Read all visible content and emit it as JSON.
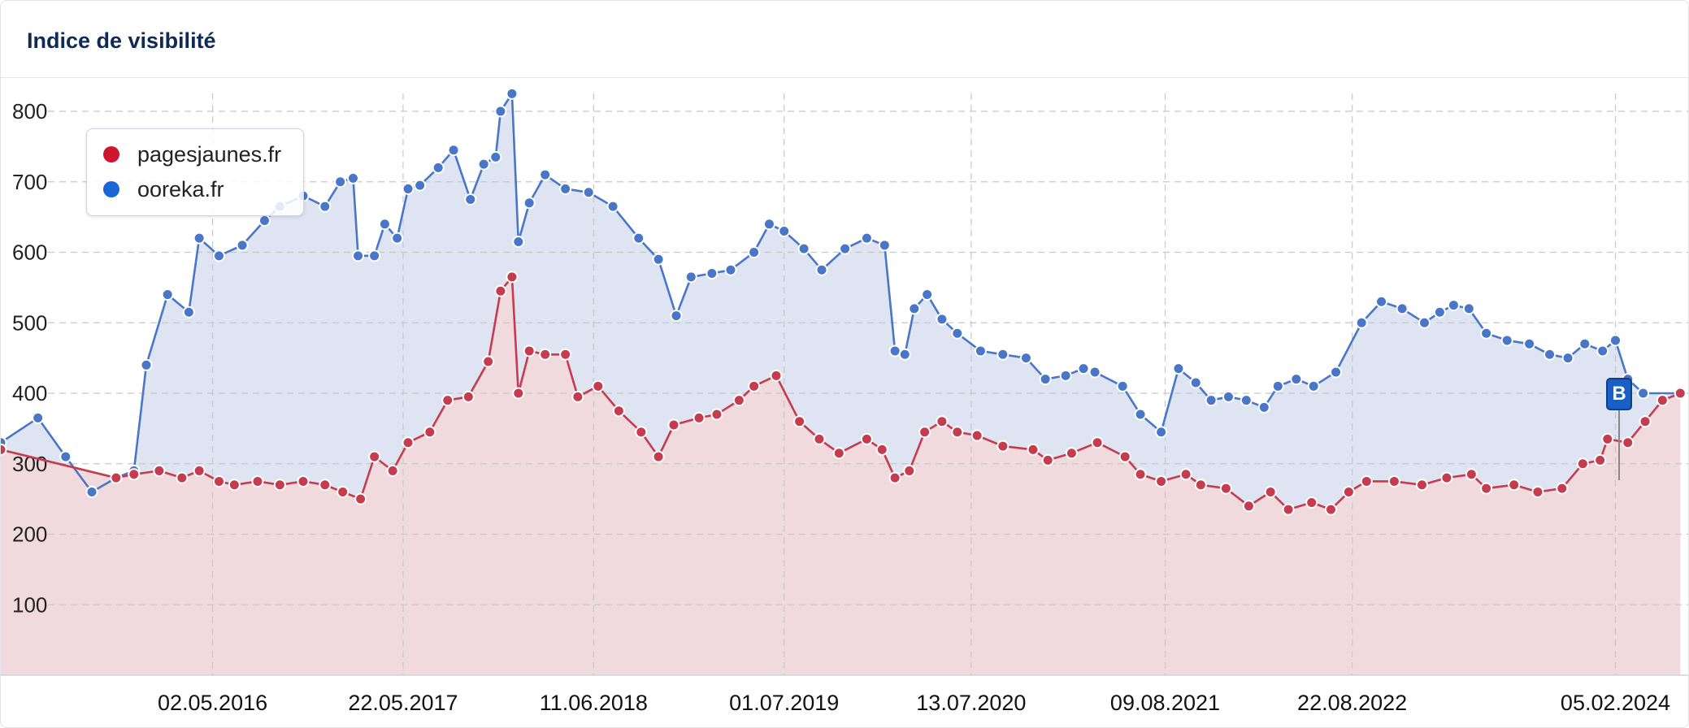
{
  "title": "Indice de visibilité",
  "colors": {
    "pagesjaunes_line": "#c43c4e",
    "pagesjaunes_fill": "#f1dadd",
    "ooreka_line": "#4a76c8",
    "ooreka_fill": "#dfe4f2",
    "grid": "#c8c8c8"
  },
  "legend": [
    {
      "label": "pagesjaunes.fr",
      "color": "#d0162e"
    },
    {
      "label": "ooreka.fr",
      "color": "#1a66d6"
    }
  ],
  "marker": {
    "label": "B",
    "date": "2024-01"
  },
  "chart_data": {
    "type": "area",
    "x_type": "date",
    "xlim": [
      "2015-03",
      "2024-07"
    ],
    "ylim": [
      0,
      850
    ],
    "yticks": [
      100,
      200,
      300,
      400,
      500,
      600,
      700,
      800
    ],
    "xtick_dates": [
      "2016-05-02",
      "2017-05-22",
      "2018-06-11",
      "2019-07-01",
      "2020-07-13",
      "2021-08-09",
      "2022-08-22",
      "2024-02-05"
    ],
    "xtick_labels": [
      "02.05.2016",
      "22.05.2017",
      "11.06.2018",
      "01.07.2019",
      "13.07.2020",
      "09.08.2021",
      "22.08.2022",
      "05.02.2024"
    ],
    "legend_position": "top-left",
    "grid": true,
    "series": [
      {
        "name": "ooreka.fr",
        "points": [
          [
            "2015-03-01",
            330
          ],
          [
            "2015-05-15",
            365
          ],
          [
            "2015-07-10",
            310
          ],
          [
            "2015-09-01",
            260
          ],
          [
            "2015-10-20",
            280
          ],
          [
            "2015-11-25",
            290
          ],
          [
            "2015-12-20",
            440
          ],
          [
            "2016-02-01",
            540
          ],
          [
            "2016-03-15",
            515
          ],
          [
            "2016-04-05",
            620
          ],
          [
            "2016-05-15",
            595
          ],
          [
            "2016-07-01",
            610
          ],
          [
            "2016-08-15",
            645
          ],
          [
            "2016-09-15",
            665
          ],
          [
            "2016-11-01",
            680
          ],
          [
            "2016-12-15",
            665
          ],
          [
            "2017-01-15",
            700
          ],
          [
            "2017-02-10",
            705
          ],
          [
            "2017-02-20",
            595
          ],
          [
            "2017-03-25",
            595
          ],
          [
            "2017-04-15",
            640
          ],
          [
            "2017-05-10",
            620
          ],
          [
            "2017-06-01",
            690
          ],
          [
            "2017-06-25",
            695
          ],
          [
            "2017-08-01",
            720
          ],
          [
            "2017-09-01",
            745
          ],
          [
            "2017-10-05",
            675
          ],
          [
            "2017-11-01",
            725
          ],
          [
            "2017-11-25",
            735
          ],
          [
            "2017-12-05",
            800
          ],
          [
            "2017-12-28",
            825
          ],
          [
            "2018-01-10",
            615
          ],
          [
            "2018-02-01",
            670
          ],
          [
            "2018-03-05",
            710
          ],
          [
            "2018-04-15",
            690
          ],
          [
            "2018-06-01",
            685
          ],
          [
            "2018-07-20",
            665
          ],
          [
            "2018-09-10",
            620
          ],
          [
            "2018-10-20",
            590
          ],
          [
            "2018-11-25",
            510
          ],
          [
            "2018-12-25",
            565
          ],
          [
            "2019-02-05",
            570
          ],
          [
            "2019-03-15",
            575
          ],
          [
            "2019-05-01",
            600
          ],
          [
            "2019-06-01",
            640
          ],
          [
            "2019-07-01",
            630
          ],
          [
            "2019-08-10",
            605
          ],
          [
            "2019-09-15",
            575
          ],
          [
            "2019-11-01",
            605
          ],
          [
            "2019-12-15",
            620
          ],
          [
            "2020-01-20",
            610
          ],
          [
            "2020-02-10",
            460
          ],
          [
            "2020-03-01",
            455
          ],
          [
            "2020-03-20",
            520
          ],
          [
            "2020-04-15",
            540
          ],
          [
            "2020-05-15",
            505
          ],
          [
            "2020-06-15",
            485
          ],
          [
            "2020-08-01",
            460
          ],
          [
            "2020-09-15",
            455
          ],
          [
            "2020-11-01",
            450
          ],
          [
            "2020-12-10",
            420
          ],
          [
            "2021-01-20",
            425
          ],
          [
            "2021-02-25",
            435
          ],
          [
            "2021-03-20",
            430
          ],
          [
            "2021-05-15",
            410
          ],
          [
            "2021-06-20",
            370
          ],
          [
            "2021-08-01",
            345
          ],
          [
            "2021-09-05",
            435
          ],
          [
            "2021-10-10",
            415
          ],
          [
            "2021-11-10",
            390
          ],
          [
            "2021-12-15",
            395
          ],
          [
            "2022-01-20",
            390
          ],
          [
            "2022-02-25",
            380
          ],
          [
            "2022-03-25",
            410
          ],
          [
            "2022-05-01",
            420
          ],
          [
            "2022-06-05",
            410
          ],
          [
            "2022-07-20",
            430
          ],
          [
            "2022-09-10",
            500
          ],
          [
            "2022-10-20",
            530
          ],
          [
            "2022-12-01",
            520
          ],
          [
            "2023-01-15",
            500
          ],
          [
            "2023-02-15",
            515
          ],
          [
            "2023-03-15",
            525
          ],
          [
            "2023-04-15",
            520
          ],
          [
            "2023-05-20",
            485
          ],
          [
            "2023-07-01",
            475
          ],
          [
            "2023-08-15",
            470
          ],
          [
            "2023-09-25",
            455
          ],
          [
            "2023-11-01",
            450
          ],
          [
            "2023-12-05",
            470
          ],
          [
            "2024-01-10",
            460
          ],
          [
            "2024-02-05",
            475
          ],
          [
            "2024-03-01",
            420
          ],
          [
            "2024-04-01",
            400
          ],
          [
            "2024-06-15",
            400
          ]
        ]
      },
      {
        "name": "pagesjaunes.fr",
        "points": [
          [
            "2015-03-01",
            320
          ],
          [
            "2015-10-20",
            280
          ],
          [
            "2015-11-25",
            285
          ],
          [
            "2016-01-15",
            290
          ],
          [
            "2016-03-01",
            280
          ],
          [
            "2016-04-05",
            290
          ],
          [
            "2016-05-15",
            275
          ],
          [
            "2016-06-15",
            270
          ],
          [
            "2016-08-01",
            275
          ],
          [
            "2016-09-15",
            270
          ],
          [
            "2016-11-01",
            275
          ],
          [
            "2016-12-15",
            270
          ],
          [
            "2017-01-20",
            260
          ],
          [
            "2017-02-25",
            250
          ],
          [
            "2017-03-25",
            310
          ],
          [
            "2017-05-01",
            290
          ],
          [
            "2017-06-01",
            330
          ],
          [
            "2017-07-15",
            345
          ],
          [
            "2017-08-20",
            390
          ],
          [
            "2017-10-01",
            395
          ],
          [
            "2017-11-10",
            445
          ],
          [
            "2017-12-05",
            545
          ],
          [
            "2017-12-28",
            565
          ],
          [
            "2018-01-10",
            400
          ],
          [
            "2018-02-01",
            460
          ],
          [
            "2018-03-05",
            455
          ],
          [
            "2018-04-15",
            455
          ],
          [
            "2018-05-10",
            395
          ],
          [
            "2018-06-20",
            410
          ],
          [
            "2018-08-01",
            375
          ],
          [
            "2018-09-15",
            345
          ],
          [
            "2018-10-20",
            310
          ],
          [
            "2018-11-20",
            355
          ],
          [
            "2019-01-10",
            365
          ],
          [
            "2019-02-15",
            370
          ],
          [
            "2019-04-01",
            390
          ],
          [
            "2019-05-01",
            410
          ],
          [
            "2019-06-15",
            425
          ],
          [
            "2019-08-01",
            360
          ],
          [
            "2019-09-10",
            335
          ],
          [
            "2019-10-20",
            315
          ],
          [
            "2019-12-15",
            335
          ],
          [
            "2020-01-15",
            320
          ],
          [
            "2020-02-10",
            280
          ],
          [
            "2020-03-10",
            290
          ],
          [
            "2020-04-10",
            345
          ],
          [
            "2020-05-15",
            360
          ],
          [
            "2020-06-15",
            345
          ],
          [
            "2020-07-25",
            340
          ],
          [
            "2020-09-15",
            325
          ],
          [
            "2020-11-15",
            320
          ],
          [
            "2020-12-15",
            305
          ],
          [
            "2021-02-01",
            315
          ],
          [
            "2021-03-25",
            330
          ],
          [
            "2021-05-20",
            310
          ],
          [
            "2021-06-20",
            285
          ],
          [
            "2021-08-01",
            275
          ],
          [
            "2021-09-20",
            285
          ],
          [
            "2021-10-20",
            270
          ],
          [
            "2021-12-10",
            265
          ],
          [
            "2022-01-25",
            240
          ],
          [
            "2022-03-10",
            260
          ],
          [
            "2022-04-15",
            235
          ],
          [
            "2022-06-01",
            245
          ],
          [
            "2022-07-10",
            235
          ],
          [
            "2022-08-15",
            260
          ],
          [
            "2022-09-20",
            275
          ],
          [
            "2022-11-15",
            275
          ],
          [
            "2023-01-10",
            270
          ],
          [
            "2023-03-01",
            280
          ],
          [
            "2023-04-20",
            285
          ],
          [
            "2023-05-20",
            265
          ],
          [
            "2023-07-15",
            270
          ],
          [
            "2023-09-01",
            260
          ],
          [
            "2023-10-20",
            265
          ],
          [
            "2023-12-01",
            300
          ],
          [
            "2024-01-05",
            305
          ],
          [
            "2024-01-20",
            335
          ],
          [
            "2024-03-01",
            330
          ],
          [
            "2024-04-05",
            360
          ],
          [
            "2024-05-10",
            390
          ],
          [
            "2024-06-15",
            400
          ]
        ]
      }
    ]
  }
}
